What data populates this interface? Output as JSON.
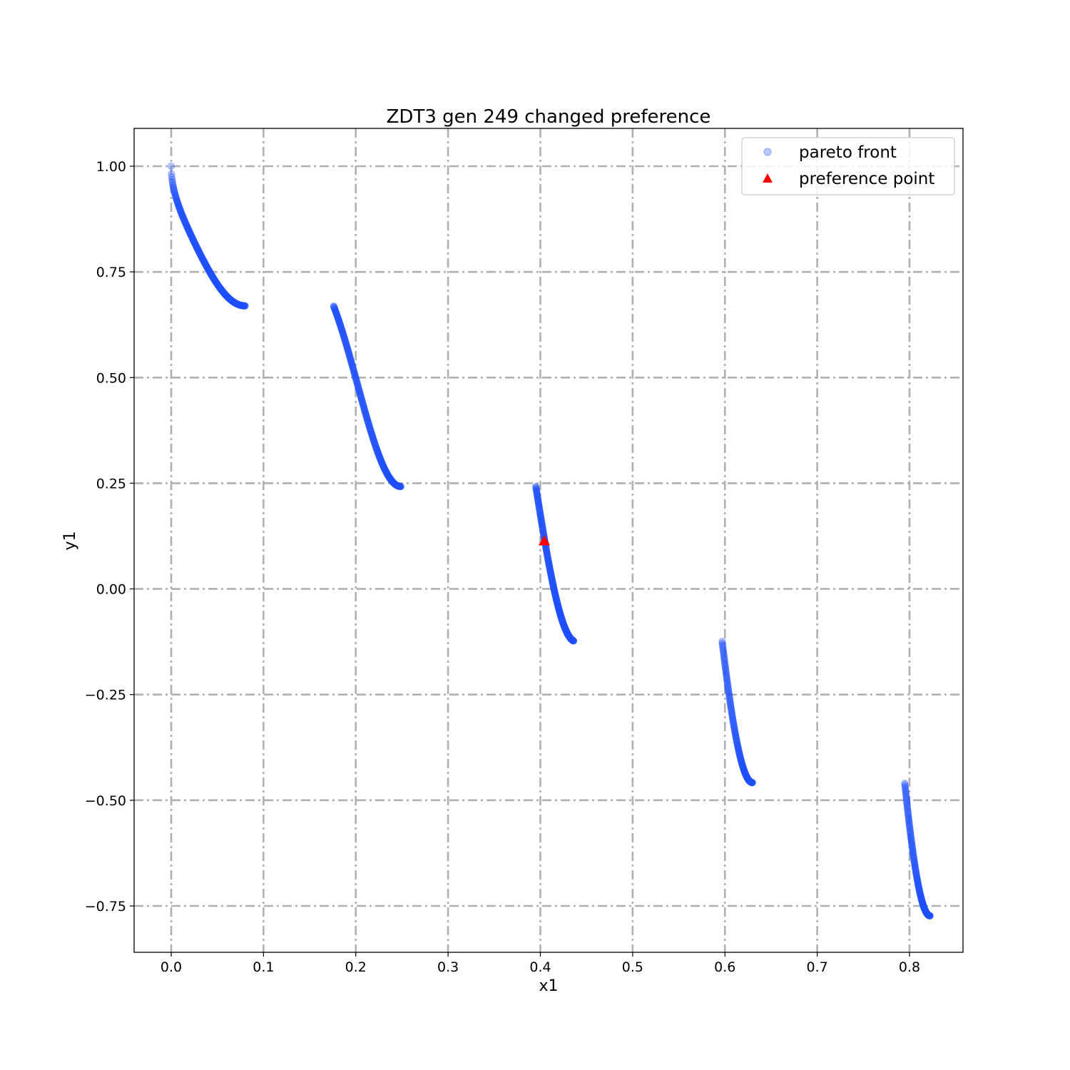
{
  "chart_data": {
    "type": "scatter",
    "title": "ZDT3 gen 249 changed preference",
    "xlabel": "x1",
    "ylabel": "y1",
    "xlim": [
      -0.0505,
      1.0505
    ],
    "xlim_note": "",
    "ylim": [
      -0.8698,
      1.0885
    ],
    "x_ticks": [
      0.0,
      0.1,
      0.2,
      0.3,
      0.4,
      0.5,
      0.6,
      0.7,
      0.8
    ],
    "x_tick_labels": [
      "0.0",
      "0.1",
      "0.2",
      "0.3",
      "0.4",
      "0.5",
      "0.6",
      "0.7",
      "0.8"
    ],
    "y_ticks": [
      -0.75,
      -0.5,
      -0.25,
      0.0,
      0.25,
      0.5,
      0.75,
      1.0
    ],
    "y_tick_labels": [
      "−0.75",
      "−0.50",
      "−0.25",
      "0.00",
      "0.25",
      "0.50",
      "0.75",
      "1.00"
    ],
    "grid": true,
    "legend_position": "top-right",
    "series": [
      {
        "name": "pareto front",
        "marker": "circle",
        "color": "#1f4fff",
        "segments": [
          {
            "x_range": [
              0.0,
              0.083
            ],
            "points": 260
          },
          {
            "x_range": [
              0.1823,
              0.2578
            ],
            "points": 260
          },
          {
            "x_range": [
              0.4093,
              0.4517
            ],
            "points": 260
          },
          {
            "x_range": [
              0.6184,
              0.6525
            ],
            "points": 160
          },
          {
            "x_range": [
              0.8234,
              0.8518
            ],
            "points": 160
          }
        ],
        "function": "y = 1 - sqrt(x) - x*sin(10*pi*x)"
      },
      {
        "name": "preference point",
        "marker": "triangle",
        "color": "#ff0000",
        "points": [
          {
            "x": 0.4188,
            "y": 0.1138
          }
        ]
      }
    ]
  }
}
